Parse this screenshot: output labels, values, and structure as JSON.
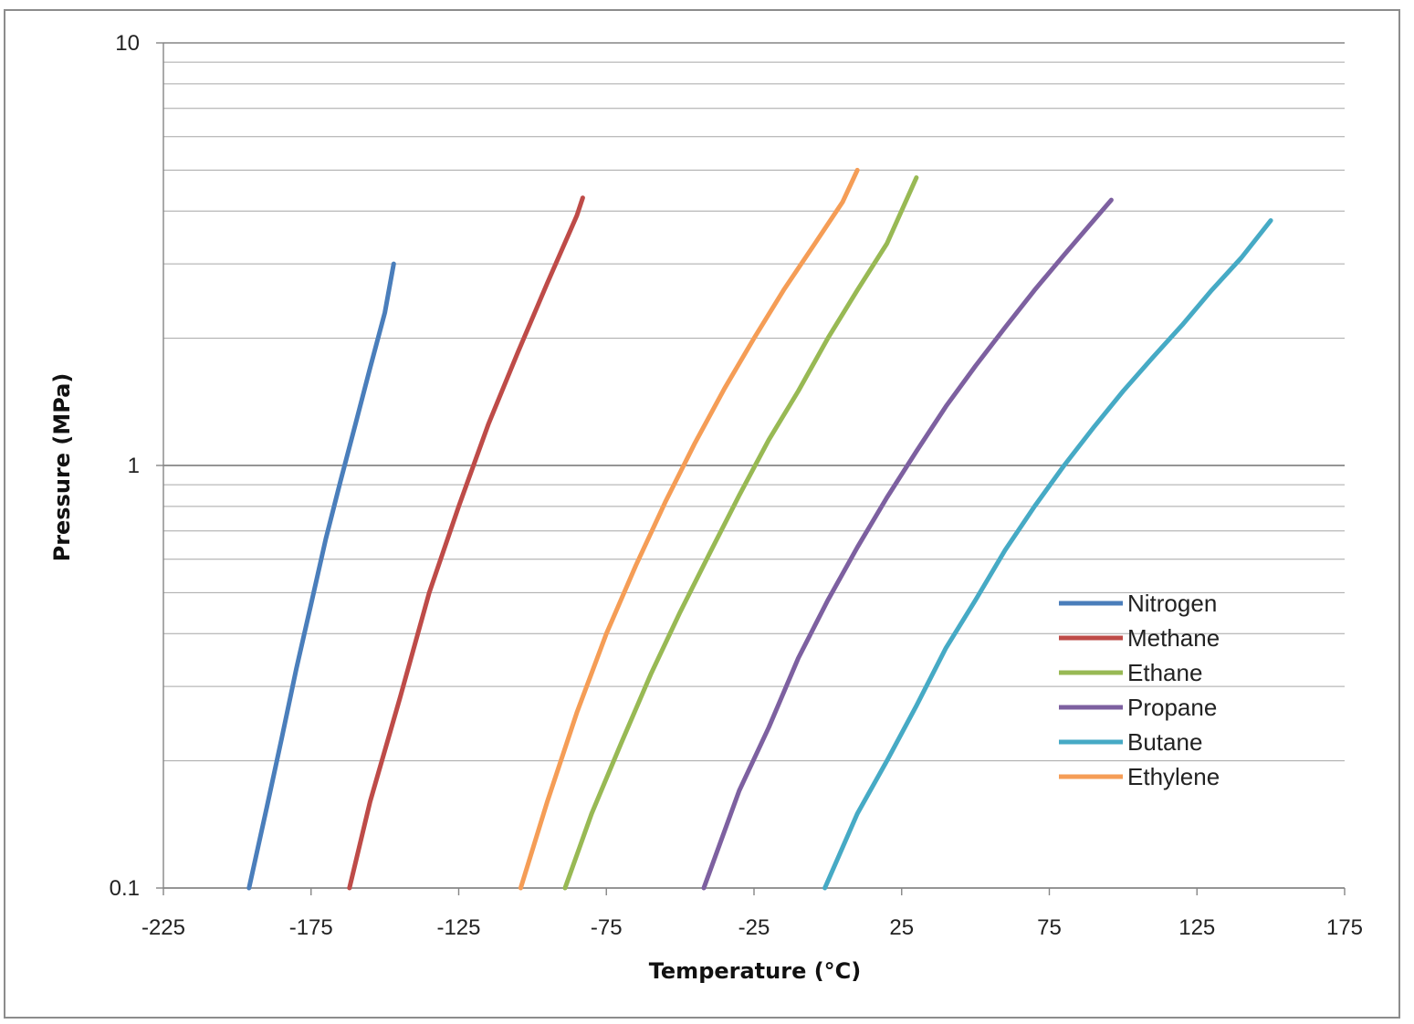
{
  "chart_data": {
    "type": "line",
    "title": "",
    "xlabel": "Temperature (°C)",
    "ylabel": "Pressure (MPa)",
    "xlim": [
      -225,
      175
    ],
    "ylim": [
      0.1,
      10
    ],
    "yscale": "log",
    "grid": "horizontal major and minor",
    "legend_position": "right, lower-middle inside plot",
    "x_ticks": [
      "-225",
      "-175",
      "-125",
      "-75",
      "-25",
      "25",
      "75",
      "125",
      "175"
    ],
    "y_ticks": [
      "0.1",
      "1",
      "10"
    ],
    "series": [
      {
        "name": "Nitrogen",
        "color": "#4a7ebb",
        "x": [
          -196,
          -190,
          -185,
          -180,
          -175,
          -170,
          -165,
          -160,
          -155,
          -150,
          -147
        ],
        "y": [
          0.1,
          0.155,
          0.225,
          0.33,
          0.47,
          0.67,
          0.92,
          1.25,
          1.7,
          2.3,
          3.0
        ]
      },
      {
        "name": "Methane",
        "color": "#be4b48",
        "x": [
          -162,
          -155,
          -145,
          -135,
          -125,
          -115,
          -105,
          -95,
          -85,
          -83
        ],
        "y": [
          0.1,
          0.16,
          0.28,
          0.5,
          0.8,
          1.25,
          1.85,
          2.7,
          3.9,
          4.3
        ]
      },
      {
        "name": "Ethane",
        "color": "#98b954",
        "x": [
          -89,
          -80,
          -70,
          -60,
          -50,
          -40,
          -30,
          -20,
          -10,
          0,
          10,
          20,
          30
        ],
        "y": [
          0.1,
          0.15,
          0.22,
          0.32,
          0.45,
          0.62,
          0.85,
          1.15,
          1.5,
          2.0,
          2.6,
          3.35,
          4.8
        ]
      },
      {
        "name": "Propane",
        "color": "#7d60a0",
        "x": [
          -42,
          -30,
          -20,
          -10,
          0,
          10,
          20,
          30,
          40,
          50,
          60,
          70,
          80,
          90,
          96
        ],
        "y": [
          0.1,
          0.17,
          0.24,
          0.35,
          0.48,
          0.64,
          0.84,
          1.08,
          1.38,
          1.72,
          2.12,
          2.6,
          3.15,
          3.8,
          4.25
        ]
      },
      {
        "name": "Butane",
        "color": "#46aac5",
        "x": [
          -1,
          10,
          20,
          30,
          40,
          50,
          60,
          70,
          80,
          90,
          100,
          110,
          120,
          130,
          140,
          150
        ],
        "y": [
          0.1,
          0.15,
          0.2,
          0.27,
          0.37,
          0.48,
          0.63,
          0.8,
          1.0,
          1.23,
          1.5,
          1.8,
          2.15,
          2.6,
          3.1,
          3.8
        ]
      },
      {
        "name": "Ethylene",
        "color": "#f59d56",
        "x": [
          -104,
          -95,
          -85,
          -75,
          -65,
          -55,
          -45,
          -35,
          -25,
          -15,
          -5,
          5,
          10
        ],
        "y": [
          0.1,
          0.16,
          0.26,
          0.4,
          0.58,
          0.82,
          1.13,
          1.52,
          2.0,
          2.6,
          3.3,
          4.2,
          5.0
        ]
      }
    ]
  }
}
